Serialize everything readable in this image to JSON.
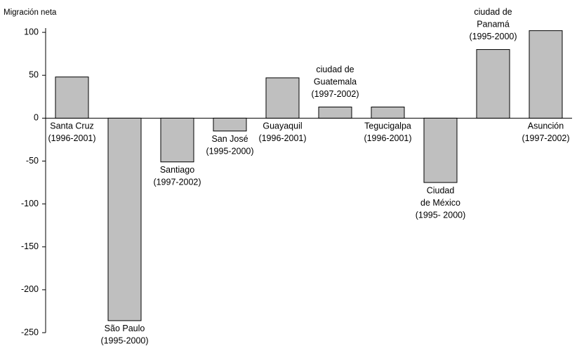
{
  "chart_data": {
    "type": "bar",
    "ylabel": "Migración neta",
    "categories": [
      [
        "Santa Cruz",
        "(1996-2001)"
      ],
      [
        "São Paulo",
        "(1995-2000)"
      ],
      [
        "Santiago",
        "(1997-2002)"
      ],
      [
        "San José",
        "(1995-2000)"
      ],
      [
        "Guayaquil",
        "(1996-2001)"
      ],
      [
        "ciudad de",
        "Guatemala",
        "(1997-2002)"
      ],
      [
        "Tegucigalpa",
        "(1996-2001)"
      ],
      [
        "Ciudad",
        "de México",
        "(1995- 2000)"
      ],
      [
        "ciudad de",
        "Panamá",
        "(1995-2000)"
      ],
      [
        "Asunción",
        "(1997-2002)"
      ]
    ],
    "values": [
      48,
      -236,
      -51,
      -15,
      47,
      13,
      13,
      -75,
      80,
      102
    ],
    "color": "#bfbfbf",
    "ylim": [
      -250,
      105
    ],
    "yticks": [
      100,
      50,
      0,
      -50,
      -100,
      -150,
      -200,
      -250
    ],
    "grid": false
  }
}
